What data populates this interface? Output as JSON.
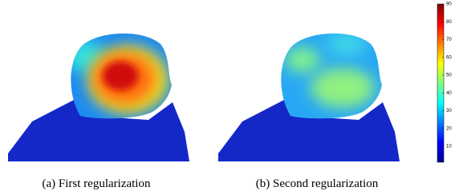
{
  "figure": {
    "panels": [
      {
        "caption": "(a) First regularization"
      },
      {
        "caption": "(b) Second regularization"
      }
    ],
    "colorbar": {
      "colormap": "jet",
      "lim": [
        1,
        90
      ],
      "ticks": [
        10,
        20,
        30,
        40,
        50,
        60,
        70,
        80,
        90
      ]
    }
  }
}
